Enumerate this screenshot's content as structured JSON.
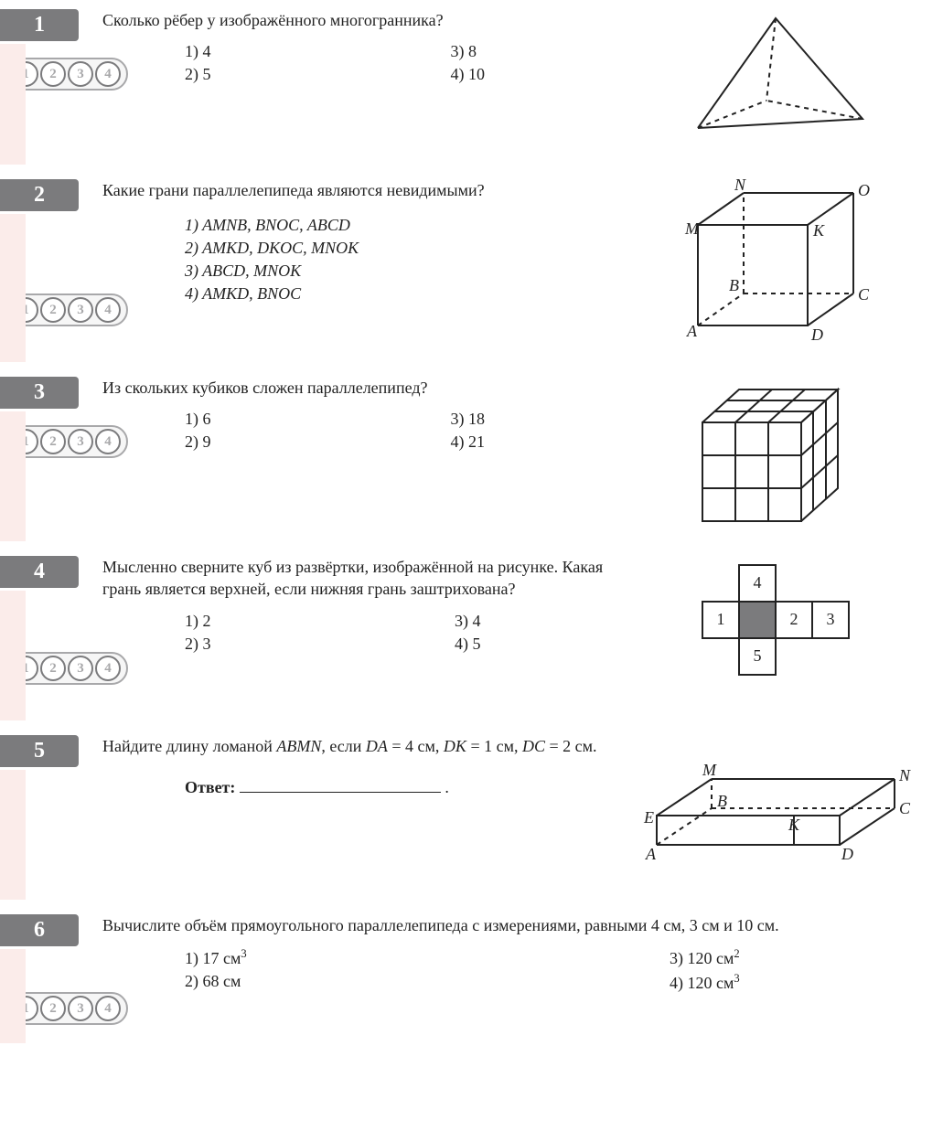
{
  "bubbles": [
    "1",
    "2",
    "3",
    "4"
  ],
  "colors": {
    "badge_bg": "#7b7b7d",
    "badge_fg": "#ffffff",
    "pink": "#fbecea",
    "line": "#222222",
    "dash": "#555555"
  },
  "q1": {
    "num": "1",
    "text": "Сколько рёбер у изображённого многогранника?",
    "opts": {
      "a": "1) 4",
      "b": "2) 5",
      "c": "3) 8",
      "d": "4) 10"
    }
  },
  "q2": {
    "num": "2",
    "text": "Какие грани параллелепипеда являются невидимыми?",
    "opts": {
      "a": "1) AMNB, BNOC, ABCD",
      "b": "2) AMKD, DKOC, MNOK",
      "c": "3) ABCD, MNOK",
      "d": "4) AMKD, BNOC"
    },
    "labels": {
      "A": "A",
      "B": "B",
      "C": "C",
      "D": "D",
      "M": "M",
      "N": "N",
      "O": "O",
      "K": "K"
    }
  },
  "q3": {
    "num": "3",
    "text": "Из скольких кубиков сложен параллелепипед?",
    "opts": {
      "a": "1) 6",
      "b": "2) 9",
      "c": "3) 18",
      "d": "4) 21"
    }
  },
  "q4": {
    "num": "4",
    "text": "Мысленно сверните куб из развёртки, изображённой на рисунке. Какая грань является верхней, если нижняя грань заштрихована?",
    "opts": {
      "a": "1) 2",
      "b": "2) 3",
      "c": "3) 4",
      "d": "4) 5"
    },
    "net_labels": {
      "n1": "1",
      "n2": "2",
      "n3": "3",
      "n4": "4",
      "n5": "5"
    }
  },
  "q5": {
    "num": "5",
    "text_html": "Найдите длину ломаной <span class=\"italic\">ABMN</span>, если <span class=\"italic\">DA</span> = 4 см, <span class=\"italic\">DK</span> = 1 см, <span class=\"italic\">DC</span> = 2 см.",
    "answer_label": "Ответ:",
    "labels": {
      "A": "A",
      "B": "B",
      "C": "C",
      "D": "D",
      "E": "E",
      "K": "K",
      "M": "M",
      "N": "N"
    }
  },
  "q6": {
    "num": "6",
    "text": "Вычислите объём прямоугольного параллелепипеда с измерениями, равными 4 см, 3 см и 10 см.",
    "opts": {
      "a_html": "1) 17 см<sup>3</sup>",
      "b_html": "2) 68 см",
      "c_html": "3) 120 см<sup>2</sup>",
      "d_html": "4) 120 см<sup>3</sup>"
    }
  }
}
